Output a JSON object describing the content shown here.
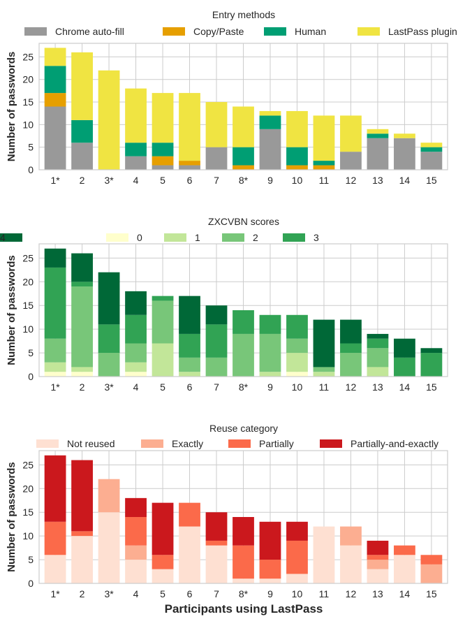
{
  "figure": {
    "xlabel": "Participants using LastPass"
  },
  "chart_data": [
    {
      "type": "bar",
      "stacked": true,
      "title": "",
      "legend_title": "Entry methods",
      "legend_position": "top",
      "xlabel": "",
      "ylabel": "Number of passwords",
      "ylim": [
        0,
        28
      ],
      "yticks": [
        0,
        5,
        10,
        15,
        20,
        25
      ],
      "grid": true,
      "categories": [
        "1*",
        "2",
        "3*",
        "4",
        "5",
        "6",
        "7",
        "8*",
        "9",
        "10",
        "11",
        "12",
        "13",
        "14",
        "15"
      ],
      "series": [
        {
          "name": "Chrome auto-fill",
          "color": "#999999",
          "values": [
            14,
            6,
            0,
            3,
            1,
            1,
            5,
            0,
            9,
            0,
            0,
            4,
            7,
            7,
            4
          ]
        },
        {
          "name": "Copy/Paste",
          "color": "#e69f00",
          "values": [
            3,
            0,
            0,
            0,
            2,
            1,
            0,
            1,
            0,
            1,
            1,
            0,
            0,
            0,
            0
          ]
        },
        {
          "name": "Human",
          "color": "#009e73",
          "values": [
            6,
            5,
            0,
            3,
            3,
            0,
            0,
            4,
            3,
            4,
            1,
            0,
            1,
            0,
            1
          ]
        },
        {
          "name": "LastPass plugin",
          "color": "#f0e442",
          "values": [
            4,
            15,
            22,
            12,
            11,
            15,
            10,
            9,
            1,
            8,
            10,
            8,
            1,
            1,
            1
          ]
        }
      ]
    },
    {
      "type": "bar",
      "stacked": true,
      "title": "",
      "legend_title": "ZXCVBN scores",
      "legend_position": "top",
      "xlabel": "",
      "ylabel": "Number of passwords",
      "ylim": [
        0,
        28
      ],
      "yticks": [
        0,
        5,
        10,
        15,
        20,
        25
      ],
      "grid": true,
      "categories": [
        "1*",
        "2",
        "3*",
        "4",
        "5",
        "6",
        "7",
        "8*",
        "9",
        "10",
        "11",
        "12",
        "13",
        "14",
        "15"
      ],
      "series": [
        {
          "name": "0",
          "color": "#ffffcc",
          "values": [
            1,
            1,
            0,
            1,
            0,
            0,
            0,
            0,
            0,
            1,
            0,
            0,
            0,
            0,
            0
          ]
        },
        {
          "name": "1",
          "color": "#c2e699",
          "values": [
            2,
            1,
            0,
            2,
            7,
            1,
            0,
            0,
            1,
            4,
            1,
            0,
            2,
            0,
            0
          ]
        },
        {
          "name": "2",
          "color": "#78c679",
          "values": [
            5,
            17,
            5,
            4,
            9,
            3,
            4,
            9,
            8,
            3,
            1,
            5,
            4,
            0,
            0
          ]
        },
        {
          "name": "3",
          "color": "#31a354",
          "values": [
            15,
            1,
            6,
            6,
            1,
            5,
            7,
            5,
            4,
            5,
            0,
            2,
            2,
            4,
            5
          ]
        },
        {
          "name": "4",
          "color": "#006837",
          "values": [
            4,
            6,
            11,
            5,
            0,
            8,
            4,
            0,
            0,
            0,
            10,
            5,
            1,
            4,
            1
          ]
        }
      ]
    },
    {
      "type": "bar",
      "stacked": true,
      "title": "",
      "legend_title": "Reuse category",
      "legend_position": "top",
      "xlabel": "Participants using LastPass",
      "ylabel": "Number of passwords",
      "ylim": [
        0,
        28
      ],
      "yticks": [
        0,
        5,
        10,
        15,
        20,
        25
      ],
      "grid": true,
      "categories": [
        "1*",
        "2",
        "3*",
        "4",
        "5",
        "6",
        "7",
        "8*",
        "9",
        "10",
        "11",
        "12",
        "13",
        "14",
        "15"
      ],
      "series": [
        {
          "name": "Not reused",
          "color": "#fee0d2",
          "values": [
            6,
            10,
            15,
            5,
            3,
            12,
            8,
            1,
            1,
            2,
            12,
            8,
            3,
            6,
            0
          ]
        },
        {
          "name": "Exactly",
          "color": "#fcae91",
          "values": [
            0,
            0,
            7,
            3,
            0,
            0,
            0,
            0,
            0,
            0,
            0,
            4,
            2,
            0,
            4
          ]
        },
        {
          "name": "Partially",
          "color": "#fb6a4a",
          "values": [
            7,
            1,
            0,
            6,
            3,
            5,
            1,
            7,
            4,
            7,
            0,
            0,
            1,
            2,
            2
          ]
        },
        {
          "name": "Partially-and-exactly",
          "color": "#cb181d",
          "values": [
            14,
            15,
            0,
            4,
            11,
            0,
            6,
            6,
            8,
            4,
            0,
            0,
            3,
            0,
            0
          ]
        }
      ]
    }
  ]
}
